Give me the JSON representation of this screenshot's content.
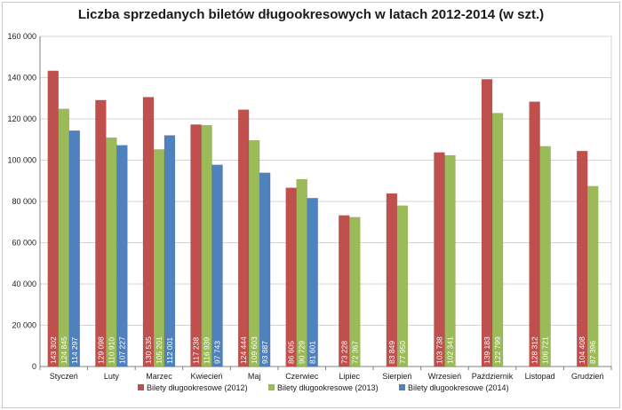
{
  "chart_data": {
    "type": "bar",
    "title": "Liczba sprzedanych biletów długookresowych w latach 2012-2014  (w szt.)",
    "xlabel": "",
    "ylabel": "",
    "ylim": [
      0,
      160000
    ],
    "yticks": [
      "0",
      "20 000",
      "40 000",
      "60 000",
      "80 000",
      "100 000",
      "120 000",
      "140 000",
      "160 000"
    ],
    "grid": true,
    "legend_position": "bottom",
    "categories": [
      "Styczeń",
      "Luty",
      "Marzec",
      "Kwiecień",
      "Maj",
      "Czerwiec",
      "Lipiec",
      "Sierpień",
      "Wrzesień",
      "Październik",
      "Listopad",
      "Grudzień"
    ],
    "series": [
      {
        "name": "Bilety długookresowe (2012)",
        "color": "#c0504d",
        "values": [
          143302,
          129098,
          130535,
          117238,
          124444,
          86605,
          73228,
          83849,
          103738,
          139183,
          128312,
          104408
        ],
        "labels": [
          "143 302",
          "129 098",
          "130 535",
          "117 238",
          "124 444",
          "86 605",
          "73 228",
          "83 849",
          "103 738",
          "139 183",
          "128 312",
          "104 408"
        ]
      },
      {
        "name": "Bilety długookresowe (2013)",
        "color": "#9bbb59",
        "values": [
          124845,
          110910,
          105201,
          116939,
          109603,
          90729,
          72367,
          77950,
          102341,
          122799,
          106721,
          87396
        ],
        "labels": [
          "124 845",
          "110 910",
          "105 201",
          "116 939",
          "109 603",
          "90 729",
          "72 367",
          "77 950",
          "102 341",
          "122 799",
          "106 721",
          "87 396"
        ]
      },
      {
        "name": "Bilety długookresowe (2014)",
        "color": "#4f81bd",
        "values": [
          114297,
          107227,
          112001,
          97743,
          93887,
          81601,
          null,
          null,
          null,
          null,
          null,
          null
        ],
        "labels": [
          "114 297",
          "107 227",
          "112 001",
          "97 743",
          "93 887",
          "81 601",
          "",
          "",
          "",
          "",
          "",
          ""
        ]
      }
    ]
  }
}
